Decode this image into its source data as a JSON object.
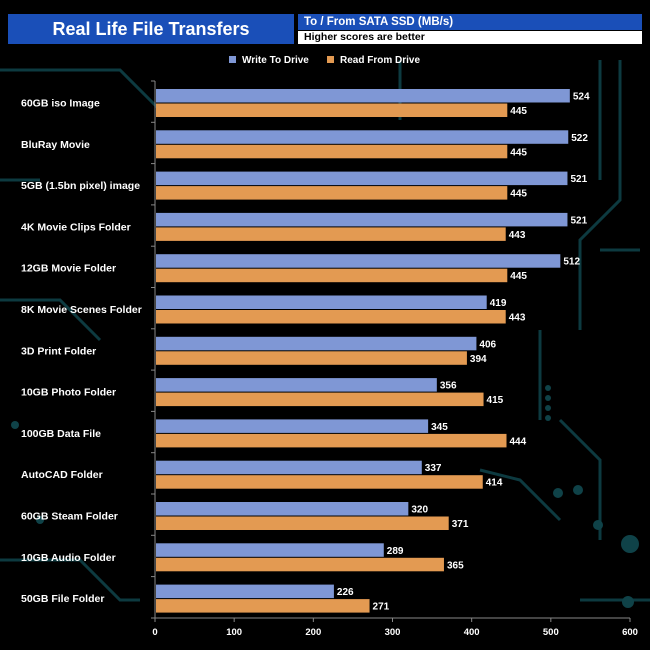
{
  "header": {
    "title": "Real Life File Transfers",
    "subtitle": "To / From SATA SSD (MB/s)",
    "note": "Higher scores are better"
  },
  "colors": {
    "write": "#7f97d5",
    "read": "#e39a52",
    "background": "#000000",
    "header_blue": "#1a4fb8",
    "circuit": "#0f3f45"
  },
  "chart_data": {
    "type": "bar",
    "orientation": "horizontal",
    "title": "Real Life File Transfers",
    "subtitle": "To / From SATA SSD (MB/s)",
    "note": "Higher scores are better",
    "categories": [
      "60GB iso Image",
      "BluRay Movie",
      "5GB (1.5bn pixel) image",
      "4K Movie Clips Folder",
      "12GB Movie Folder",
      "8K Movie Scenes Folder",
      "3D Print Folder",
      "10GB Photo Folder",
      "100GB Data File",
      "AutoCAD Folder",
      "60GB Steam Folder",
      "10GB Audio Folder",
      "50GB File Folder"
    ],
    "series": [
      {
        "name": "Write To  Drive",
        "color": "#7f97d5",
        "values": [
          524,
          522,
          521,
          521,
          512,
          419,
          406,
          356,
          345,
          337,
          320,
          289,
          226
        ]
      },
      {
        "name": "Read From  Drive",
        "color": "#e39a52",
        "values": [
          445,
          445,
          445,
          443,
          445,
          443,
          394,
          415,
          444,
          414,
          371,
          365,
          271
        ]
      }
    ],
    "xlim": [
      0,
      600
    ],
    "xticks": [
      0,
      100,
      200,
      300,
      400,
      500,
      600
    ],
    "xlabel": "",
    "ylabel": "",
    "legend": "top-center",
    "grid": false
  }
}
